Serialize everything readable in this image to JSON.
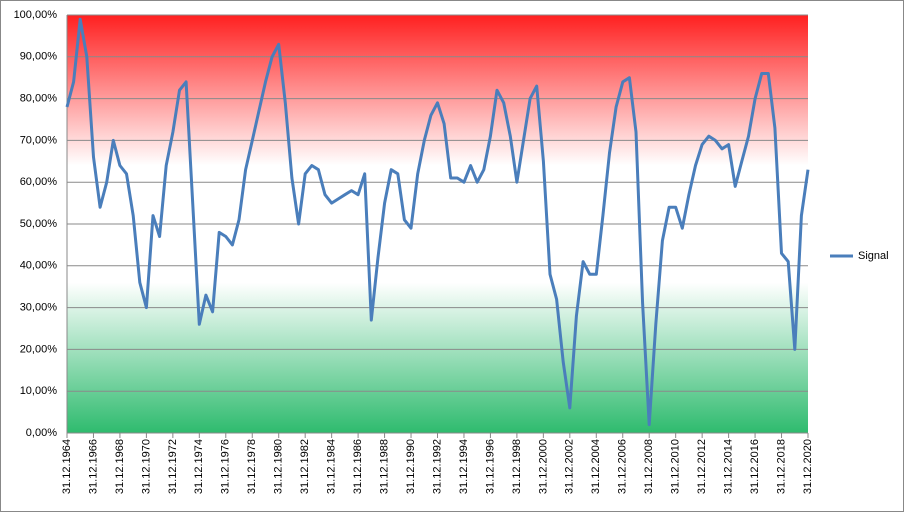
{
  "chart_data": {
    "type": "line",
    "categories": [
      "31.12.1964",
      null,
      null,
      null,
      "31.12.1966",
      null,
      null,
      null,
      "31.12.1968",
      null,
      null,
      null,
      "31.12.1970",
      null,
      null,
      null,
      "31.12.1972",
      null,
      null,
      null,
      "31.12.1974",
      null,
      null,
      null,
      "31.12.1976",
      null,
      null,
      null,
      "31.12.1978",
      null,
      null,
      null,
      "31.12.1980",
      null,
      null,
      null,
      "31.12.1982",
      null,
      null,
      null,
      "31.12.1984",
      null,
      null,
      null,
      "31.12.1986",
      null,
      null,
      null,
      "31.12.1988",
      null,
      null,
      null,
      "31.12.1990",
      null,
      null,
      null,
      "31.12.1992",
      null,
      null,
      null,
      "31.12.1994",
      null,
      null,
      null,
      "31.12.1996",
      null,
      null,
      null,
      "31.12.1998",
      null,
      null,
      null,
      "31.12.2000",
      null,
      null,
      null,
      "31.12.2002",
      null,
      null,
      null,
      "31.12.2004",
      null,
      null,
      null,
      "31.12.2006",
      null,
      null,
      null,
      "31.12.2008",
      null,
      null,
      null,
      "31.12.2010",
      null,
      null,
      null,
      "31.12.2012",
      null,
      null,
      null,
      "31.12.2014",
      null,
      null,
      null,
      "31.12.2016",
      null,
      null,
      null,
      "31.12.2018",
      null,
      null,
      null,
      "31.12.2020"
    ],
    "series": [
      {
        "name": "Signal",
        "color": "#4a7ebb",
        "values": [
          78,
          84,
          99,
          90,
          66,
          54,
          60,
          70,
          64,
          62,
          52,
          36,
          30,
          52,
          47,
          64,
          72,
          82,
          84,
          55,
          26,
          33,
          29,
          48,
          47,
          45,
          51,
          63,
          70,
          77,
          84,
          90,
          93,
          79,
          61,
          50,
          62,
          64,
          63,
          57,
          55,
          56,
          57,
          58,
          57,
          62,
          27,
          42,
          55,
          63,
          62,
          51,
          49,
          62,
          70,
          76,
          79,
          74,
          61,
          61,
          60,
          64,
          60,
          63,
          71,
          82,
          79,
          71,
          60,
          70,
          80,
          83,
          65,
          38,
          32,
          17,
          6,
          28,
          41,
          38,
          38,
          52,
          67,
          78,
          84,
          85,
          72,
          31,
          2,
          26,
          46,
          54,
          54,
          49,
          57,
          64,
          69,
          71,
          70,
          68,
          69,
          59,
          65,
          71,
          80,
          86,
          86,
          73,
          43,
          41,
          20,
          52,
          63
        ]
      }
    ],
    "ylim": [
      0,
      100
    ],
    "yticks": [
      {
        "value": 0,
        "label": "0,00%"
      },
      {
        "value": 10,
        "label": "10,00%"
      },
      {
        "value": 20,
        "label": "20,00%"
      },
      {
        "value": 30,
        "label": "30,00%"
      },
      {
        "value": 40,
        "label": "40,00%"
      },
      {
        "value": 50,
        "label": "50,00%"
      },
      {
        "value": 60,
        "label": "60,00%"
      },
      {
        "value": 70,
        "label": "70,00%"
      },
      {
        "value": 80,
        "label": "80,00%"
      },
      {
        "value": 90,
        "label": "90,00%"
      },
      {
        "value": 100,
        "label": "100,00%"
      }
    ],
    "grid": true,
    "legend": "right"
  }
}
